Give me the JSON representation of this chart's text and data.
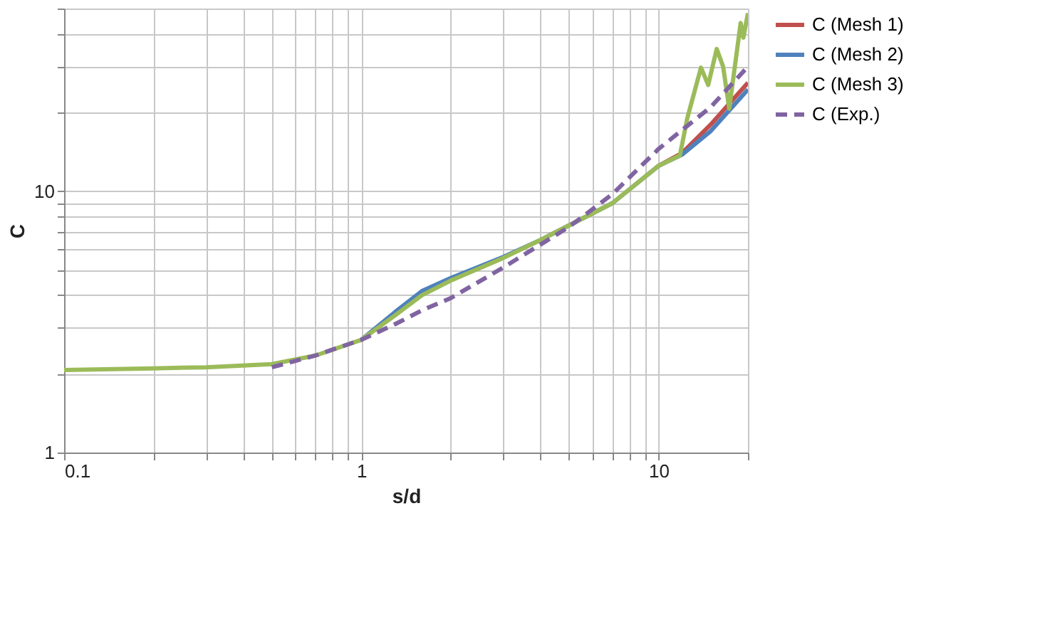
{
  "chart_data": {
    "type": "line",
    "xlabel": "s/d",
    "ylabel": "C",
    "log": "xy",
    "grid": true,
    "legend": "right",
    "marker": "none",
    "xlim": [
      0.1,
      20
    ],
    "ylim": [
      1,
      50
    ],
    "xticks": [
      0.1,
      {
        "value": 0.2,
        "label": null
      },
      {
        "value": 0.3,
        "label": null
      },
      {
        "value": 0.4,
        "label": null
      },
      {
        "value": 0.5,
        "label": null
      },
      {
        "value": 0.6,
        "label": null
      },
      {
        "value": 0.7,
        "label": null
      },
      {
        "value": 0.8,
        "label": null
      },
      {
        "value": 0.9,
        "label": null
      },
      1,
      {
        "value": 2,
        "label": null
      },
      {
        "value": 3,
        "label": null
      },
      {
        "value": 4,
        "label": null
      },
      {
        "value": 5,
        "label": null
      },
      {
        "value": 6,
        "label": null
      },
      {
        "value": 7,
        "label": null
      },
      {
        "value": 8,
        "label": null
      },
      {
        "value": 9,
        "label": null
      },
      10,
      {
        "value": 20,
        "label": null
      }
    ],
    "yticks": [
      1,
      {
        "value": 2,
        "label": null
      },
      {
        "value": 3,
        "label": null
      },
      {
        "value": 4,
        "label": null
      },
      {
        "value": 5,
        "label": null
      },
      {
        "value": 6,
        "label": null
      },
      {
        "value": 7,
        "label": null
      },
      {
        "value": 8,
        "label": null
      },
      {
        "value": 9,
        "label": null
      },
      10,
      {
        "value": 20,
        "label": null
      },
      {
        "value": 30,
        "label": null
      },
      {
        "value": 40,
        "label": null
      },
      {
        "value": 50,
        "label": null
      }
    ],
    "series": [
      {
        "name": "C (Mesh 1)",
        "color": "#c0504d",
        "line_style": "solid",
        "x": [
          10,
          12,
          15,
          20
        ],
        "values": [
          12.5,
          14,
          18,
          26
        ]
      },
      {
        "name": "C (Mesh 2)",
        "color": "#4f81bd",
        "line_style": "solid",
        "x": [
          1,
          1.3,
          1.6,
          2,
          3,
          4,
          5,
          7,
          10,
          12,
          15,
          20
        ],
        "values": [
          2.7,
          3.45,
          4.15,
          4.65,
          5.6,
          6.5,
          7.4,
          9.0,
          12.5,
          13.8,
          17,
          24.5
        ]
      },
      {
        "name": "C (Mesh 3)",
        "color": "#9bbb59",
        "line_style": "solid",
        "x": [
          0.1,
          0.2,
          0.3,
          0.5,
          0.7,
          1,
          1.3,
          1.6,
          2,
          3,
          4,
          5,
          7,
          10,
          11.8,
          12.5,
          13.9,
          14.7,
          15.7,
          16.5,
          17.3,
          18.9,
          19.3,
          20
        ],
        "values": [
          2.07,
          2.1,
          2.12,
          2.18,
          2.35,
          2.7,
          3.35,
          4.0,
          4.55,
          5.55,
          6.5,
          7.4,
          9.0,
          12.5,
          13.7,
          19,
          29.7,
          25.5,
          35,
          30,
          20.7,
          44,
          38.7,
          48
        ]
      },
      {
        "name": "C (Exp.)",
        "color": "#8064a2",
        "line_style": "dashed",
        "x": [
          0.5,
          0.7,
          1,
          1.3,
          1.6,
          2,
          3,
          5,
          7,
          10,
          15,
          20
        ],
        "values": [
          2.12,
          2.35,
          2.7,
          3.1,
          3.5,
          3.9,
          5.1,
          7.3,
          9.75,
          14.5,
          21,
          30
        ]
      }
    ]
  }
}
